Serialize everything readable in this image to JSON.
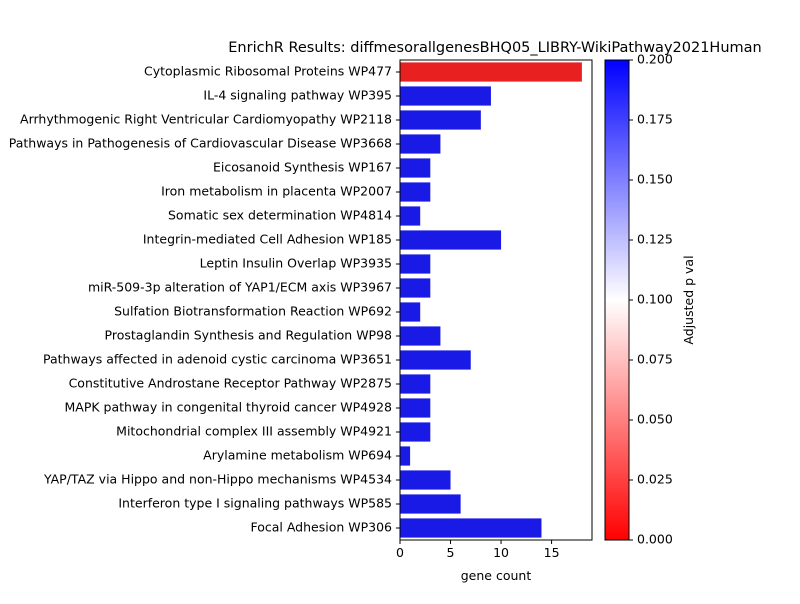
{
  "chart_data": {
    "type": "bar",
    "orientation": "horizontal",
    "title": "EnrichR Results: diffmesorallgenesBHQ05_LIBRY-WikiPathway2021Human",
    "xlabel": "gene count",
    "ylabel": "",
    "xlim": [
      0,
      19
    ],
    "xticks": [
      "0",
      "5",
      "10",
      "15"
    ],
    "xtick_values": [
      0,
      5,
      10,
      15
    ],
    "grid": false,
    "categories": [
      "Cytoplasmic Ribosomal Proteins WP477",
      "IL-4 signaling pathway WP395",
      "Arrhythmogenic Right Ventricular Cardiomyopathy WP2118",
      "Pathways in Pathogenesis of Cardiovascular Disease WP3668",
      "Eicosanoid Synthesis WP167",
      "Iron metabolism in placenta WP2007",
      "Somatic sex determination WP4814",
      "Integrin-mediated Cell Adhesion WP185",
      "Leptin Insulin Overlap WP3935",
      "miR-509-3p alteration of YAP1/ECM axis WP3967",
      "Sulfation Biotransformation Reaction WP692",
      "Prostaglandin Synthesis and Regulation WP98",
      "Pathways affected in adenoid cystic carcinoma WP3651",
      "Constitutive Androstane Receptor Pathway WP2875",
      "MAPK pathway in congenital thyroid cancer WP4928",
      "Mitochondrial complex III assembly WP4921",
      "Arylamine metabolism WP694",
      "YAP/TAZ via Hippo and non-Hippo mechanisms WP4534",
      "Interferon type I signaling pathways WP585",
      "Focal Adhesion WP306"
    ],
    "values": [
      18,
      9,
      8,
      4,
      3,
      3,
      2,
      10,
      3,
      3,
      2,
      4,
      7,
      3,
      3,
      3,
      1,
      5,
      6,
      14
    ],
    "bar_colors": [
      "#e82020",
      "#1a1ae6",
      "#1a1ae6",
      "#1a1ae6",
      "#1a1ae6",
      "#1a1ae6",
      "#1a1ae6",
      "#1a1ae6",
      "#1a1ae6",
      "#1a1ae6",
      "#1a1ae6",
      "#1a1ae6",
      "#1a1ae6",
      "#1a1ae6",
      "#1a1ae6",
      "#1a1ae6",
      "#1a1ae6",
      "#1a1ae6",
      "#1a1ae6",
      "#1a1ae6"
    ],
    "colorbar": {
      "label": "Adjusted p val",
      "range": [
        0,
        0.2
      ],
      "ticks": [
        "0.000",
        "0.025",
        "0.050",
        "0.075",
        "0.100",
        "0.125",
        "0.150",
        "0.175",
        "0.200"
      ],
      "tick_values": [
        0,
        0.025,
        0.05,
        0.075,
        0.1,
        0.125,
        0.15,
        0.175,
        0.2
      ],
      "colors": [
        "#ff0000",
        "#ffffff",
        "#0000ff"
      ]
    }
  }
}
